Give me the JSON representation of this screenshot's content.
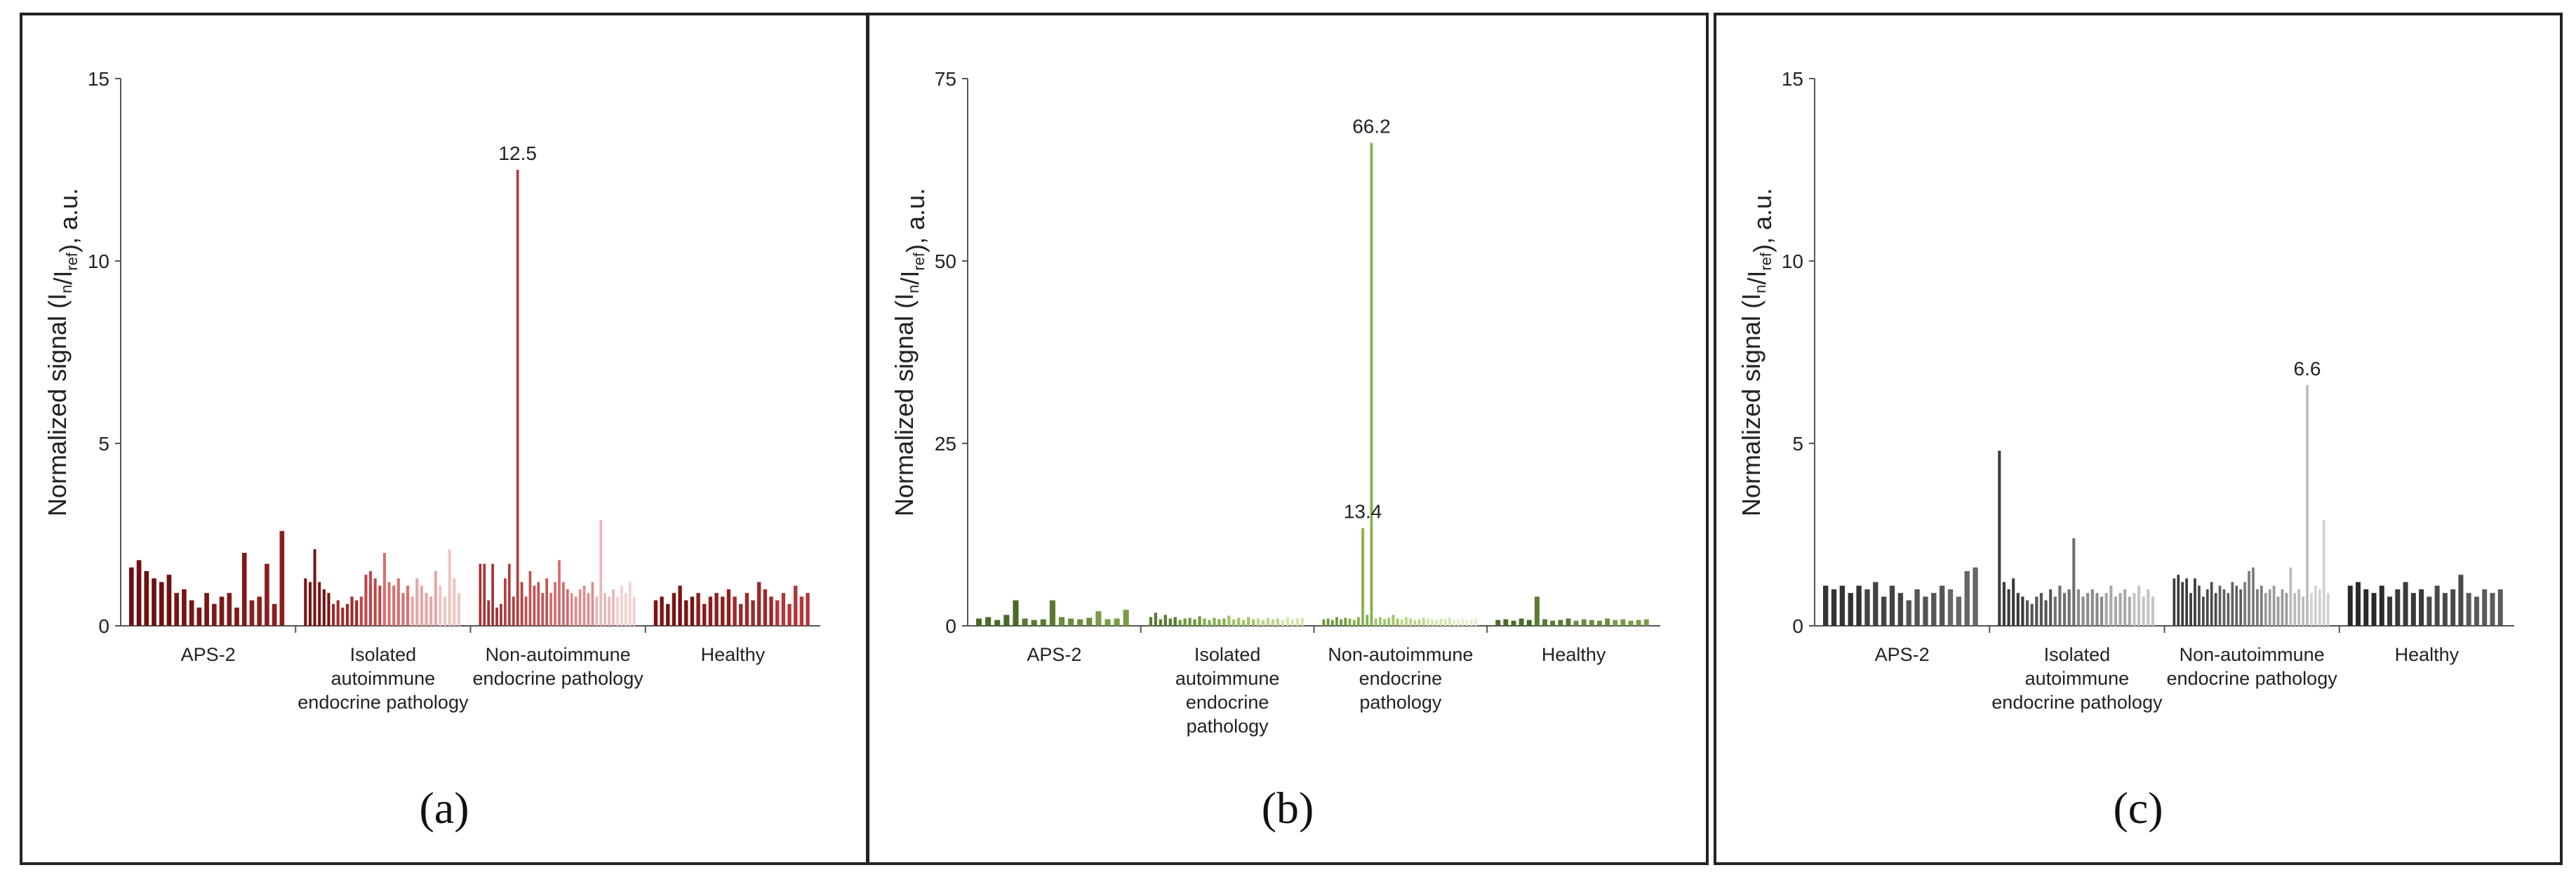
{
  "charts": [
    {
      "caption": "(a)",
      "chart_data": {
        "type": "bar",
        "ylabel_main": "Normalized signal (I",
        "ylabel_sub1": "n",
        "ylabel_mid": "/I",
        "ylabel_sub2": "ref",
        "ylabel_end": "), a.u.",
        "ylim": [
          0,
          15
        ],
        "yticks": [
          "0",
          "5",
          "10",
          "15"
        ],
        "ytick_values": [
          0,
          5,
          10,
          15
        ],
        "annotations": [
          {
            "text": "12.5",
            "group": 2,
            "index": 9,
            "value": 12.5
          }
        ],
        "groups": [
          {
            "label_lines": [
              "APS-2"
            ],
            "values": [
              1.6,
              1.8,
              1.5,
              1.3,
              1.2,
              1.4,
              0.9,
              1.0,
              0.7,
              0.5,
              0.9,
              0.6,
              0.8,
              0.9,
              0.5,
              2.0,
              0.7,
              0.8,
              1.7,
              0.6,
              2.6
            ],
            "colors": [
              "#6e1010",
              "#7a1515",
              "#7e1a1a",
              "#8a2020"
            ]
          },
          {
            "label_lines": [
              "Isolated",
              "autoimmune",
              "endocrine pathology"
            ],
            "values": [
              1.3,
              1.2,
              2.1,
              1.2,
              1.0,
              0.9,
              0.6,
              0.7,
              0.5,
              0.6,
              0.8,
              0.7,
              0.8,
              1.4,
              1.5,
              1.3,
              1.1,
              2.0,
              1.2,
              1.1,
              1.3,
              0.9,
              1.1,
              0.8,
              1.3,
              1.1,
              0.9,
              0.8,
              1.5,
              1.1,
              0.8,
              2.1,
              1.3,
              0.9
            ],
            "colors": [
              "#7a1414",
              "#a02a2a",
              "#c04848",
              "#d86f6f",
              "#e8a5a5",
              "#f0c4c4"
            ]
          },
          {
            "label_lines": [
              "Non-autoimmune",
              "endocrine pathology"
            ],
            "values": [
              1.7,
              1.7,
              0.7,
              1.7,
              0.5,
              0.6,
              1.3,
              1.7,
              0.8,
              12.5,
              1.2,
              0.8,
              1.5,
              1.1,
              1.2,
              0.9,
              1.3,
              0.9,
              1.2,
              1.8,
              1.2,
              1.0,
              0.9,
              0.8,
              1.0,
              1.1,
              0.9,
              1.2,
              0.8,
              2.9,
              0.9,
              0.8,
              1.0,
              0.8,
              1.1,
              0.9,
              1.2,
              0.8
            ],
            "colors": [
              "#a83030",
              "#b63c3c",
              "#c45050",
              "#d46a6a",
              "#e08a8a",
              "#ecb5b5",
              "#f4d0d0"
            ]
          },
          {
            "label_lines": [
              "Healthy"
            ],
            "values": [
              0.7,
              0.8,
              0.6,
              0.9,
              1.1,
              0.7,
              0.8,
              0.9,
              0.6,
              0.8,
              0.9,
              0.8,
              1.0,
              0.8,
              0.6,
              0.9,
              0.7,
              1.2,
              1.0,
              0.8,
              0.7,
              0.9,
              0.6,
              1.1,
              0.8,
              0.9
            ],
            "colors": [
              "#7a1414",
              "#8c1e1e",
              "#9e2828",
              "#b03838"
            ]
          }
        ]
      }
    },
    {
      "caption": "(b)",
      "chart_data": {
        "type": "bar",
        "ylabel_main": "Normalized signal (I",
        "ylabel_sub1": "n",
        "ylabel_mid": "/I",
        "ylabel_sub2": "ref",
        "ylabel_end": "), a.u.",
        "ylim": [
          0,
          75
        ],
        "yticks": [
          "0",
          "25",
          "50",
          "75"
        ],
        "ytick_values": [
          0,
          25,
          50,
          75
        ],
        "annotations": [
          {
            "text": "66.2",
            "group": 2,
            "index": 11,
            "value": 66.2
          },
          {
            "text": "13.4",
            "group": 2,
            "index": 9,
            "value": 13.4
          }
        ],
        "groups": [
          {
            "label_lines": [
              "APS-2"
            ],
            "values": [
              1.0,
              1.2,
              0.8,
              1.5,
              3.5,
              1.0,
              0.8,
              0.9,
              3.5,
              1.2,
              1.0,
              0.9,
              1.1,
              2.0,
              0.9,
              1.0,
              2.2
            ],
            "colors": [
              "#4a6a28",
              "#5a7a30",
              "#6b8e3a",
              "#7a9c45"
            ]
          },
          {
            "label_lines": [
              "Isolated",
              "autoimmune",
              "endocrine",
              "pathology"
            ],
            "values": [
              1.2,
              1.8,
              0.9,
              1.5,
              1.0,
              1.2,
              0.8,
              1.0,
              1.1,
              0.9,
              1.3,
              1.0,
              0.8,
              1.1,
              0.9,
              1.0,
              1.4,
              0.9,
              1.1,
              0.8,
              1.2,
              0.9,
              1.0,
              0.8,
              1.1,
              0.9,
              1.0,
              0.8,
              1.2,
              0.9,
              1.0,
              1.1
            ],
            "colors": [
              "#5a7a30",
              "#6e9a3a",
              "#88b04e",
              "#a2c466",
              "#bcd68a",
              "#d4e6b0"
            ]
          },
          {
            "label_lines": [
              "Non-autoimmune",
              "endocrine",
              "pathology"
            ],
            "values": [
              0.9,
              1.0,
              0.8,
              1.2,
              0.9,
              1.1,
              1.0,
              0.8,
              1.2,
              13.4,
              1.5,
              66.2,
              1.0,
              1.2,
              0.9,
              1.1,
              1.5,
              1.0,
              0.9,
              1.2,
              1.0,
              0.8,
              0.9,
              1.1,
              1.0,
              0.9,
              0.8,
              1.0,
              0.9,
              1.1,
              0.8,
              0.9,
              1.0,
              0.8,
              0.9,
              1.0
            ],
            "colors": [
              "#6e9a3a",
              "#88b04e",
              "#a2c466",
              "#bcd68a",
              "#d4e6b0",
              "#e4efcc"
            ]
          },
          {
            "label_lines": [
              "Healthy"
            ],
            "values": [
              0.8,
              0.9,
              0.7,
              1.0,
              0.8,
              4.0,
              0.9,
              0.7,
              0.8,
              1.0,
              0.7,
              0.9,
              0.8,
              0.7,
              1.0,
              0.8,
              0.9,
              0.7,
              0.8,
              0.9
            ],
            "colors": [
              "#4a6a28",
              "#5a7a30",
              "#6b8e3a",
              "#7a9c45"
            ]
          }
        ]
      }
    },
    {
      "caption": "(c)",
      "chart_data": {
        "type": "bar",
        "ylabel_main": "Normalized signal (I",
        "ylabel_sub1": "n",
        "ylabel_mid": "/I",
        "ylabel_sub2": "ref",
        "ylabel_end": "), a.u.",
        "ylim": [
          0,
          15
        ],
        "yticks": [
          "0",
          "5",
          "10",
          "15"
        ],
        "ytick_values": [
          0,
          5,
          10,
          15
        ],
        "annotations": [
          {
            "text": "6.6",
            "group": 2,
            "index": 32,
            "value": 6.6
          }
        ],
        "groups": [
          {
            "label_lines": [
              "APS-2"
            ],
            "values": [
              1.1,
              1.0,
              1.1,
              0.9,
              1.1,
              1.0,
              1.2,
              0.8,
              1.1,
              0.9,
              0.7,
              1.0,
              0.8,
              0.9,
              1.1,
              1.0,
              0.8,
              1.5,
              1.6
            ],
            "colors": [
              "#333333",
              "#444444",
              "#555555",
              "#666666"
            ]
          },
          {
            "label_lines": [
              "Isolated",
              "autoimmune",
              "endocrine pathology"
            ],
            "values": [
              4.8,
              1.2,
              1.0,
              1.3,
              0.9,
              0.8,
              0.7,
              0.6,
              0.8,
              0.9,
              0.7,
              1.0,
              0.8,
              1.1,
              0.9,
              1.0,
              2.4,
              1.0,
              0.8,
              0.9,
              1.0,
              0.9,
              0.8,
              0.9,
              1.1,
              0.8,
              0.9,
              1.0,
              0.8,
              0.9,
              1.1,
              0.8,
              1.0,
              0.8
            ],
            "colors": [
              "#3a3a3a",
              "#555555",
              "#707070",
              "#8a8a8a",
              "#a8a8a8",
              "#c4c4c4"
            ]
          },
          {
            "label_lines": [
              "Non-autoimmune",
              "endocrine pathology"
            ],
            "values": [
              1.3,
              1.4,
              1.2,
              1.3,
              0.9,
              1.3,
              1.1,
              0.8,
              1.0,
              1.2,
              0.9,
              1.1,
              1.0,
              0.9,
              1.2,
              1.1,
              1.0,
              1.2,
              1.5,
              1.6,
              1.0,
              1.1,
              0.9,
              1.0,
              1.1,
              0.8,
              1.0,
              0.9,
              1.6,
              0.9,
              1.0,
              0.8,
              6.6,
              0.9,
              1.1,
              1.0,
              2.9,
              0.9
            ],
            "colors": [
              "#3a3a3a",
              "#4a4a4a",
              "#606060",
              "#7a7a7a",
              "#999999",
              "#bbbbbb",
              "#d0d0d0"
            ]
          },
          {
            "label_lines": [
              "Healthy"
            ],
            "values": [
              1.1,
              1.2,
              1.0,
              0.9,
              1.1,
              0.8,
              1.0,
              1.2,
              0.9,
              1.0,
              0.8,
              1.1,
              0.9,
              1.0,
              1.4,
              0.9,
              0.8,
              1.0,
              0.9,
              1.0
            ],
            "colors": [
              "#2a2a2a",
              "#3a3a3a",
              "#4a4a4a",
              "#5a5a5a"
            ]
          }
        ]
      }
    }
  ]
}
